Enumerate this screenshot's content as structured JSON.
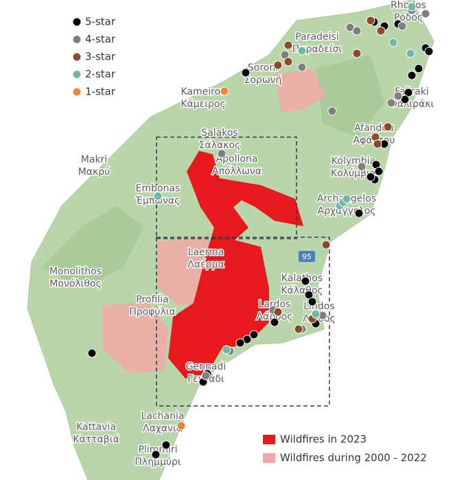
{
  "legend": {
    "items": [
      {
        "label": "5-star",
        "color": "#000000"
      },
      {
        "label": "4-star",
        "color": "#808080"
      },
      {
        "label": "3-star",
        "color": "#8b4a2b"
      },
      {
        "label": "2-star",
        "color": "#6fb8a8"
      },
      {
        "label": "1-star",
        "color": "#e8883a"
      }
    ],
    "fires": [
      {
        "label": "Wildfires in 2023",
        "color": "#e8191c"
      },
      {
        "label": "Wildfires during 2000 - 2022",
        "color": "#f4a6a6"
      }
    ]
  },
  "road": "95",
  "places": [
    {
      "name": "Rhodos",
      "local": "Ρόδος"
    },
    {
      "name": "Paradeisi",
      "local": "Παραδείσι"
    },
    {
      "name": "Soroni",
      "local": "Σορωνή"
    },
    {
      "name": "Kameiros",
      "local": "Κάμειρος"
    },
    {
      "name": "Salakos",
      "local": "Σάλακος"
    },
    {
      "name": "Apollona",
      "local": "Απόλλωνα"
    },
    {
      "name": "Makri",
      "local": "Μακρύ"
    },
    {
      "name": "Embonas",
      "local": "Έμπωνας"
    },
    {
      "name": "Faliraki",
      "local": "Φαλιράκι"
    },
    {
      "name": "Afandou",
      "local": "Αφάντου"
    },
    {
      "name": "Kolymbia",
      "local": "Κολύμβια"
    },
    {
      "name": "Archangelos",
      "local": "Αρχάγγελος"
    },
    {
      "name": "Laerma",
      "local": "Λαέρμα"
    },
    {
      "name": "Monolithos",
      "local": "Μονόλιθος"
    },
    {
      "name": "Profilia",
      "local": "Προφύλια"
    },
    {
      "name": "Kalathos",
      "local": "Κάλαθος"
    },
    {
      "name": "Lardos",
      "local": "Λάρδος"
    },
    {
      "name": "Lindos",
      "local": "Λίνδος"
    },
    {
      "name": "Gennadi",
      "local": "Γεννάδι"
    },
    {
      "name": "Lachania",
      "local": "Λαχανιά"
    },
    {
      "name": "Kattavia",
      "local": "Κατταβιά"
    },
    {
      "name": "Plimmiri",
      "local": "Πλημμύρι"
    }
  ]
}
